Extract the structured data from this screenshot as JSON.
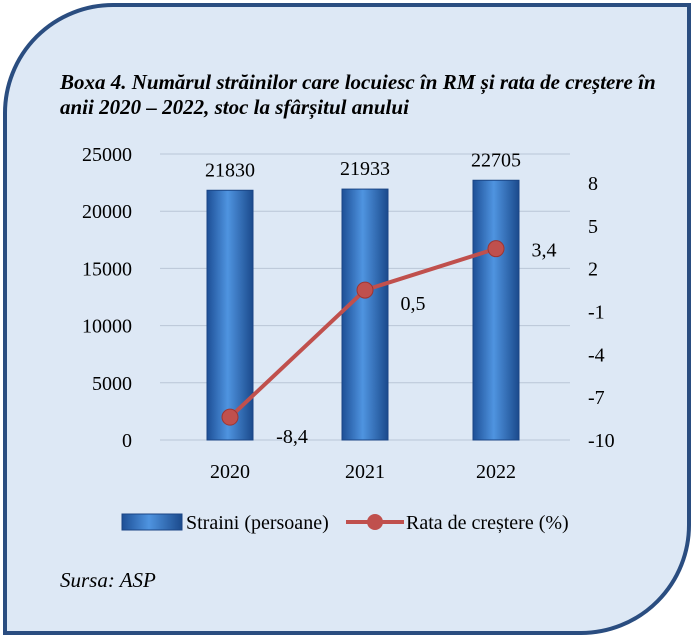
{
  "caption": "Boxa 4. Numărul străinilor care locuiesc în RM și rata de creștere în anii 2020 – 2022, stoc la sfârșitul anului",
  "source": "Sursa: ASP",
  "colors": {
    "bar": "#2e6fc4",
    "line": "#c0504d",
    "border": "#2a4d80",
    "background": "#dde8f5"
  },
  "chart_data": {
    "type": "bar+line",
    "categories": [
      "2020",
      "2021",
      "2022"
    ],
    "series": [
      {
        "name": "Straini (persoane)",
        "type": "bar",
        "axis": "left",
        "values": [
          21830,
          21933,
          22705
        ],
        "labels": [
          "21830",
          "21933",
          "22705"
        ]
      },
      {
        "name": "Rata de creștere (%)",
        "type": "line",
        "axis": "right",
        "values": [
          -8.4,
          0.5,
          3.4
        ],
        "labels": [
          "-8,4",
          "0,5",
          "3,4"
        ]
      }
    ],
    "y_left": {
      "ylim": [
        0,
        25000
      ],
      "ticks": [
        0,
        5000,
        10000,
        15000,
        20000,
        25000
      ]
    },
    "y_right": {
      "ylim": [
        -10,
        8
      ],
      "ticks": [
        "-10",
        "-7",
        "-4",
        "-1",
        "2",
        "5",
        "8"
      ]
    },
    "grid": true,
    "legend": "bottom"
  }
}
